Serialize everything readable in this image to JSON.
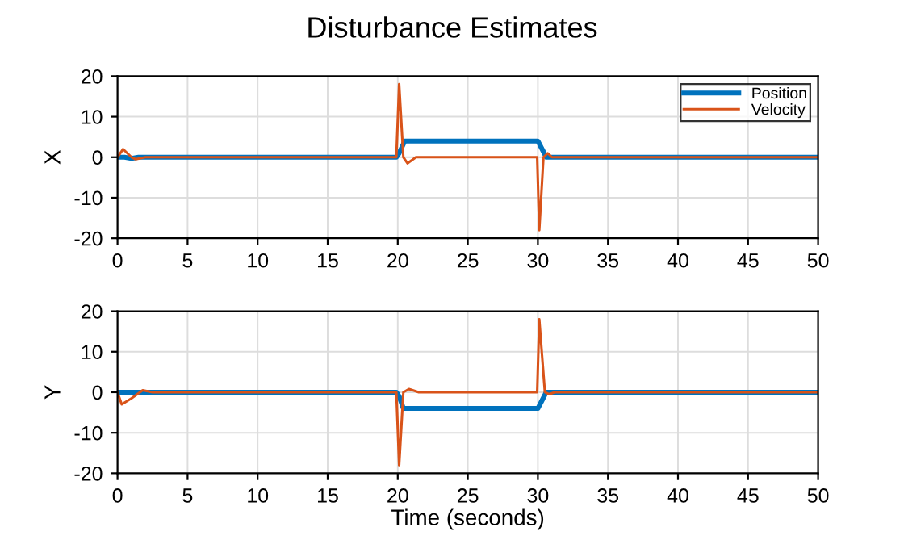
{
  "chart_data": [
    {
      "type": "line",
      "title": "Disturbance Estimates",
      "ylabel": "X",
      "xlim": [
        0,
        50
      ],
      "xticks": [
        0,
        5,
        10,
        15,
        20,
        25,
        30,
        35,
        40,
        45,
        50
      ],
      "ylim": [
        -20,
        20
      ],
      "yticks": [
        -20,
        -10,
        0,
        10,
        20
      ],
      "grid": true,
      "legend": "top right",
      "series": [
        {
          "name": "Position",
          "color": "#0072bd",
          "x": [
            0,
            0.5,
            1,
            1.5,
            2,
            19.9,
            20.1,
            20.5,
            30,
            30.3,
            30.6,
            31,
            50
          ],
          "values": [
            0,
            0,
            -0.3,
            0,
            0,
            0,
            1,
            4,
            4,
            2,
            0,
            0,
            0
          ]
        },
        {
          "name": "Velocity",
          "color": "#d95319",
          "x": [
            0,
            0.4,
            1,
            1.3,
            2,
            19.9,
            20.1,
            20.4,
            20.7,
            21.3,
            29.95,
            30.1,
            30.4,
            30.7,
            31,
            50
          ],
          "values": [
            0,
            2,
            0,
            -0.5,
            0,
            0,
            18,
            0,
            -1.5,
            0,
            0,
            -18,
            0,
            1,
            0,
            0
          ]
        }
      ]
    },
    {
      "type": "line",
      "ylabel": "Y",
      "xlabel": "Time (seconds)",
      "xlim": [
        0,
        50
      ],
      "xticks": [
        0,
        5,
        10,
        15,
        20,
        25,
        30,
        35,
        40,
        45,
        50
      ],
      "ylim": [
        -20,
        20
      ],
      "yticks": [
        -20,
        -10,
        0,
        10,
        20
      ],
      "grid": true,
      "series": [
        {
          "color": "#0072bd",
          "x": [
            0,
            0.5,
            1,
            1.5,
            2,
            19.9,
            20.1,
            20.4,
            30,
            30.3,
            30.6,
            31,
            50
          ],
          "values": [
            0,
            0,
            0,
            0,
            0,
            0,
            -1,
            -4,
            -4,
            -2,
            0,
            0,
            0
          ]
        },
        {
          "color": "#d95319",
          "x": [
            0,
            0.3,
            1,
            1.8,
            2.5,
            19.9,
            20.1,
            20.4,
            20.8,
            21.5,
            29.95,
            30.1,
            30.5,
            30.8,
            31.2,
            50
          ],
          "values": [
            0,
            -3,
            -1.5,
            0.5,
            0,
            0,
            -18,
            0,
            0.8,
            0,
            0,
            18,
            0,
            -0.5,
            0,
            0
          ]
        }
      ]
    }
  ]
}
